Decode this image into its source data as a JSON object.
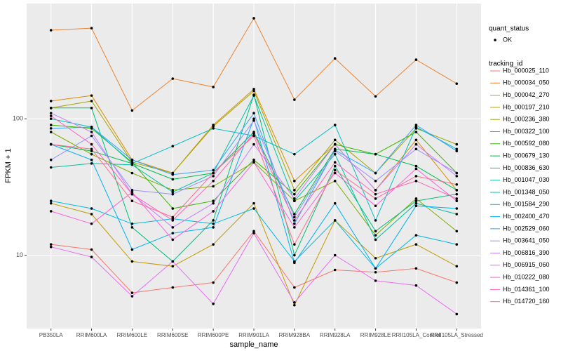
{
  "chart_data": {
    "type": "line",
    "x_label": "sample_name",
    "y_label": "FPKM + 1",
    "categories": [
      "PB350LA",
      "RRIM600LA",
      "RRIM600LE",
      "RRIM600SE",
      "RRIM600PE",
      "RRIM901LA",
      "RRIM928BA",
      "RRIM928LA",
      "RRIM928LE",
      "RRII105LA_Control",
      "RRII105LA_Stressed"
    ],
    "log_y": true,
    "ylim": [
      2.9,
      700
    ],
    "yticks": [
      10,
      100
    ],
    "grid": true,
    "point_color": "#000000",
    "shape_legend": {
      "title": "quant_status",
      "labels": [
        "OK"
      ]
    },
    "legend_title": "tracking_id",
    "legend_position": "right",
    "series": [
      {
        "name": "Hb_000025_110",
        "color": "#F8766D",
        "values": [
          12,
          11,
          5.3,
          5.8,
          6.3,
          15,
          5.8,
          7.8,
          7.5,
          8,
          6.3
        ]
      },
      {
        "name": "Hb_000034_050",
        "color": "#EA8331",
        "values": [
          446,
          462,
          115,
          197,
          171,
          546,
          138,
          277,
          146,
          271,
          181
        ]
      },
      {
        "name": "Hb_000042_270",
        "color": "#D89000",
        "values": [
          135,
          148,
          50,
          40,
          90,
          165,
          35,
          65,
          30,
          70,
          30
        ]
      },
      {
        "name": "Hb_000197_210",
        "color": "#C09B00",
        "values": [
          24,
          20,
          9,
          8.3,
          12,
          24,
          4.3,
          18,
          9.5,
          12,
          8.3
        ]
      },
      {
        "name": "Hb_000236_380",
        "color": "#A3A500",
        "values": [
          120,
          135,
          48,
          40,
          88,
          160,
          30,
          70,
          40,
          85,
          65
        ]
      },
      {
        "name": "Hb_000322_100",
        "color": "#7CAE00",
        "values": [
          80,
          55,
          40,
          30,
          32,
          48,
          25,
          35,
          14,
          26,
          15
        ]
      },
      {
        "name": "Hb_000592_080",
        "color": "#39B600",
        "values": [
          90,
          85,
          48,
          22,
          25,
          50,
          28,
          65,
          55,
          80,
          40
        ]
      },
      {
        "name": "Hb_000679_130",
        "color": "#00BB4E",
        "values": [
          65,
          58,
          47,
          36,
          40,
          80,
          20,
          60,
          55,
          45,
          30
        ]
      },
      {
        "name": "Hb_000836_630",
        "color": "#00BF7D",
        "values": [
          120,
          120,
          16,
          9,
          18,
          150,
          10,
          45,
          15,
          25,
          28
        ]
      },
      {
        "name": "Hb_001047_030",
        "color": "#00C1A3",
        "values": [
          44,
          47,
          46,
          29,
          40,
          148,
          25,
          55,
          13,
          24,
          20
        ]
      },
      {
        "name": "Hb_001348_050",
        "color": "#00BFC4",
        "values": [
          100,
          87,
          47,
          63,
          85,
          75,
          55,
          90,
          18,
          87,
          60
        ]
      },
      {
        "name": "Hb_001584_290",
        "color": "#00BAE0",
        "values": [
          25,
          22,
          17,
          18.5,
          17,
          22,
          9,
          18,
          8,
          14,
          12
        ]
      },
      {
        "name": "Hb_002400_470",
        "color": "#00B0F6",
        "values": [
          65,
          50,
          11,
          14.5,
          16,
          100,
          8.8,
          24,
          8,
          23,
          22
        ]
      },
      {
        "name": "Hb_002529_060",
        "color": "#35A2FF",
        "values": [
          85,
          87,
          50,
          39,
          42,
          110,
          17,
          59,
          40,
          90,
          58
        ]
      },
      {
        "name": "Hb_003641_050",
        "color": "#9590FF",
        "values": [
          50,
          75,
          30,
          28,
          38,
          97,
          19,
          58,
          35,
          60,
          40
        ]
      },
      {
        "name": "Hb_006816_390",
        "color": "#C77CFF",
        "values": [
          110,
          80,
          28,
          16,
          24,
          65,
          26,
          65,
          30,
          65,
          38
        ]
      },
      {
        "name": "Hb_006915_060",
        "color": "#E76BF3",
        "values": [
          11.5,
          9.7,
          5,
          9,
          4.4,
          14.5,
          4.5,
          10,
          6.5,
          6,
          3.7
        ]
      },
      {
        "name": "Hb_010222_080",
        "color": "#FA62DB",
        "values": [
          21,
          17,
          29,
          13,
          21,
          48,
          16,
          40,
          23,
          43,
          25
        ]
      },
      {
        "name": "Hb_014361_100",
        "color": "#FF62BC",
        "values": [
          105,
          65,
          28,
          18,
          35,
          78,
          18,
          48,
          28,
          35,
          26
        ]
      },
      {
        "name": "Hb_014720_160",
        "color": "#FF6C91",
        "values": [
          65,
          60,
          25,
          19,
          40,
          75,
          12,
          42,
          26,
          38,
          33
        ]
      }
    ]
  }
}
